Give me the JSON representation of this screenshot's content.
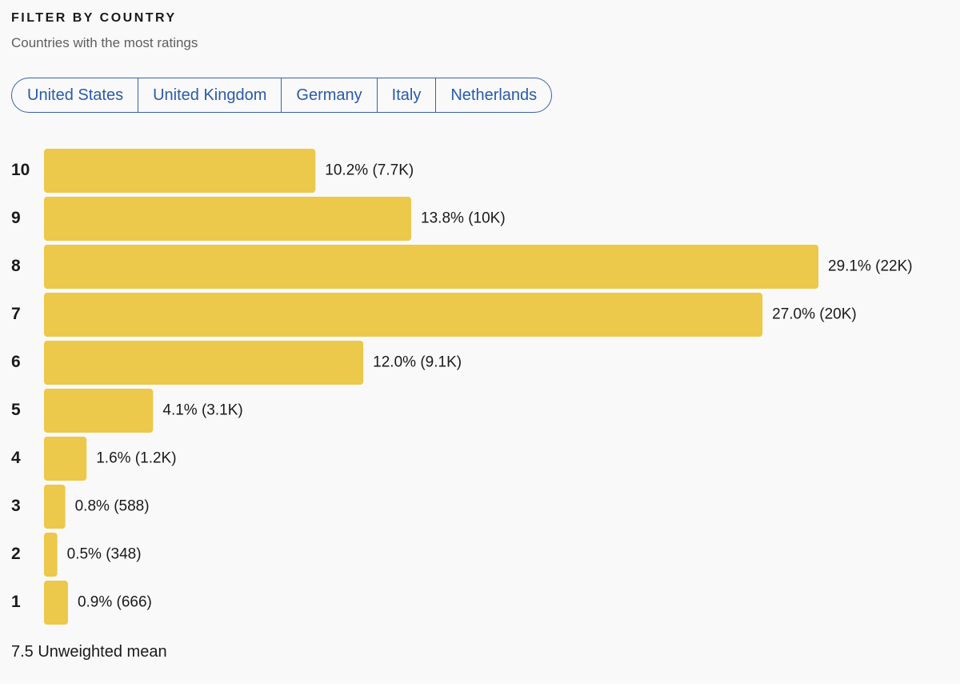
{
  "header": {
    "title": "FILTER BY COUNTRY",
    "subtitle": "Countries with the most ratings"
  },
  "filters": [
    "United States",
    "United Kingdom",
    "Germany",
    "Italy",
    "Netherlands"
  ],
  "chart_data": {
    "type": "bar",
    "orientation": "horizontal",
    "color": "#ecc84b",
    "categories": [
      "10",
      "9",
      "8",
      "7",
      "6",
      "5",
      "4",
      "3",
      "2",
      "1"
    ],
    "values": [
      10.2,
      13.8,
      29.1,
      27.0,
      12.0,
      4.1,
      1.6,
      0.8,
      0.5,
      0.9
    ],
    "value_labels": [
      "10.2% (7.7K)",
      "13.8% (10K)",
      "29.1% (22K)",
      "27.0% (20K)",
      "12.0% (9.1K)",
      "4.1% (3.1K)",
      "1.6% (1.2K)",
      "0.8% (588)",
      "0.5% (348)",
      "0.9% (666)"
    ]
  },
  "footer": "7.5 Unweighted mean"
}
